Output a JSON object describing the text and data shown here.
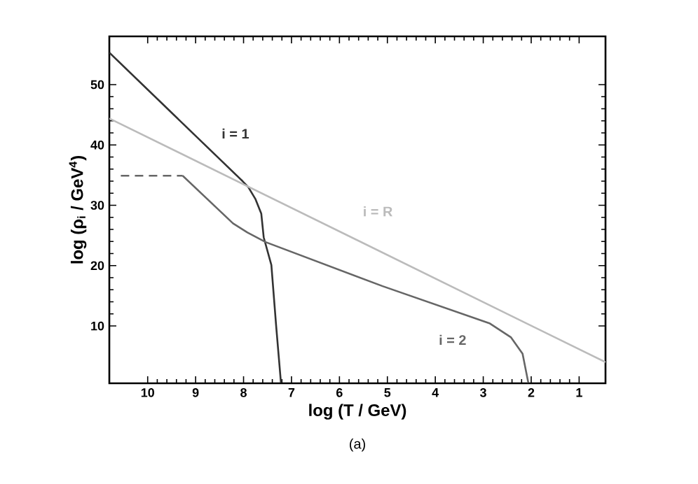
{
  "chart_data": {
    "type": "line",
    "xlabel": "log (T / GeV)",
    "ylabel": "log (ρ$_{i}$ / GeV$^{4}$)",
    "xlim": [
      10.8,
      0.45
    ],
    "ylim": [
      0.5,
      58
    ],
    "xticks": [
      10,
      9,
      8,
      7,
      6,
      5,
      4,
      3,
      2,
      1
    ],
    "yticks": [
      10,
      20,
      30,
      40,
      50
    ],
    "grid": false,
    "marker": "none",
    "series": [
      {
        "name": "i = 1",
        "color": "#333333",
        "line_style": "solid",
        "x": [
          10.8,
          8.02,
          7.9,
          7.75,
          7.63,
          7.58,
          7.42,
          7.32,
          7.22
        ],
        "values": [
          55.3,
          34.0,
          33.0,
          31.0,
          28.6,
          24.7,
          20.1,
          10,
          0.6
        ]
      },
      {
        "name": "i = R",
        "color": "#bbbbbb",
        "line_style": "solid",
        "x": [
          10.8,
          0.45
        ],
        "values": [
          44.4,
          4.0
        ]
      },
      {
        "color": "#666666",
        "line_style": "dashed",
        "x": [
          10.56,
          9.27
        ],
        "values": [
          34.9,
          34.9
        ]
      },
      {
        "name": "i = 2",
        "color": "#666666",
        "line_style": "solid",
        "x": [
          9.27,
          8.22,
          7.92,
          7.54,
          5.1,
          2.86,
          2.42,
          2.18,
          2.06
        ],
        "values": [
          34.9,
          27.0,
          25.5,
          23.9,
          16.6,
          10.4,
          8.1,
          5.4,
          0.6
        ]
      }
    ],
    "annotations": [
      "(a)"
    ]
  }
}
